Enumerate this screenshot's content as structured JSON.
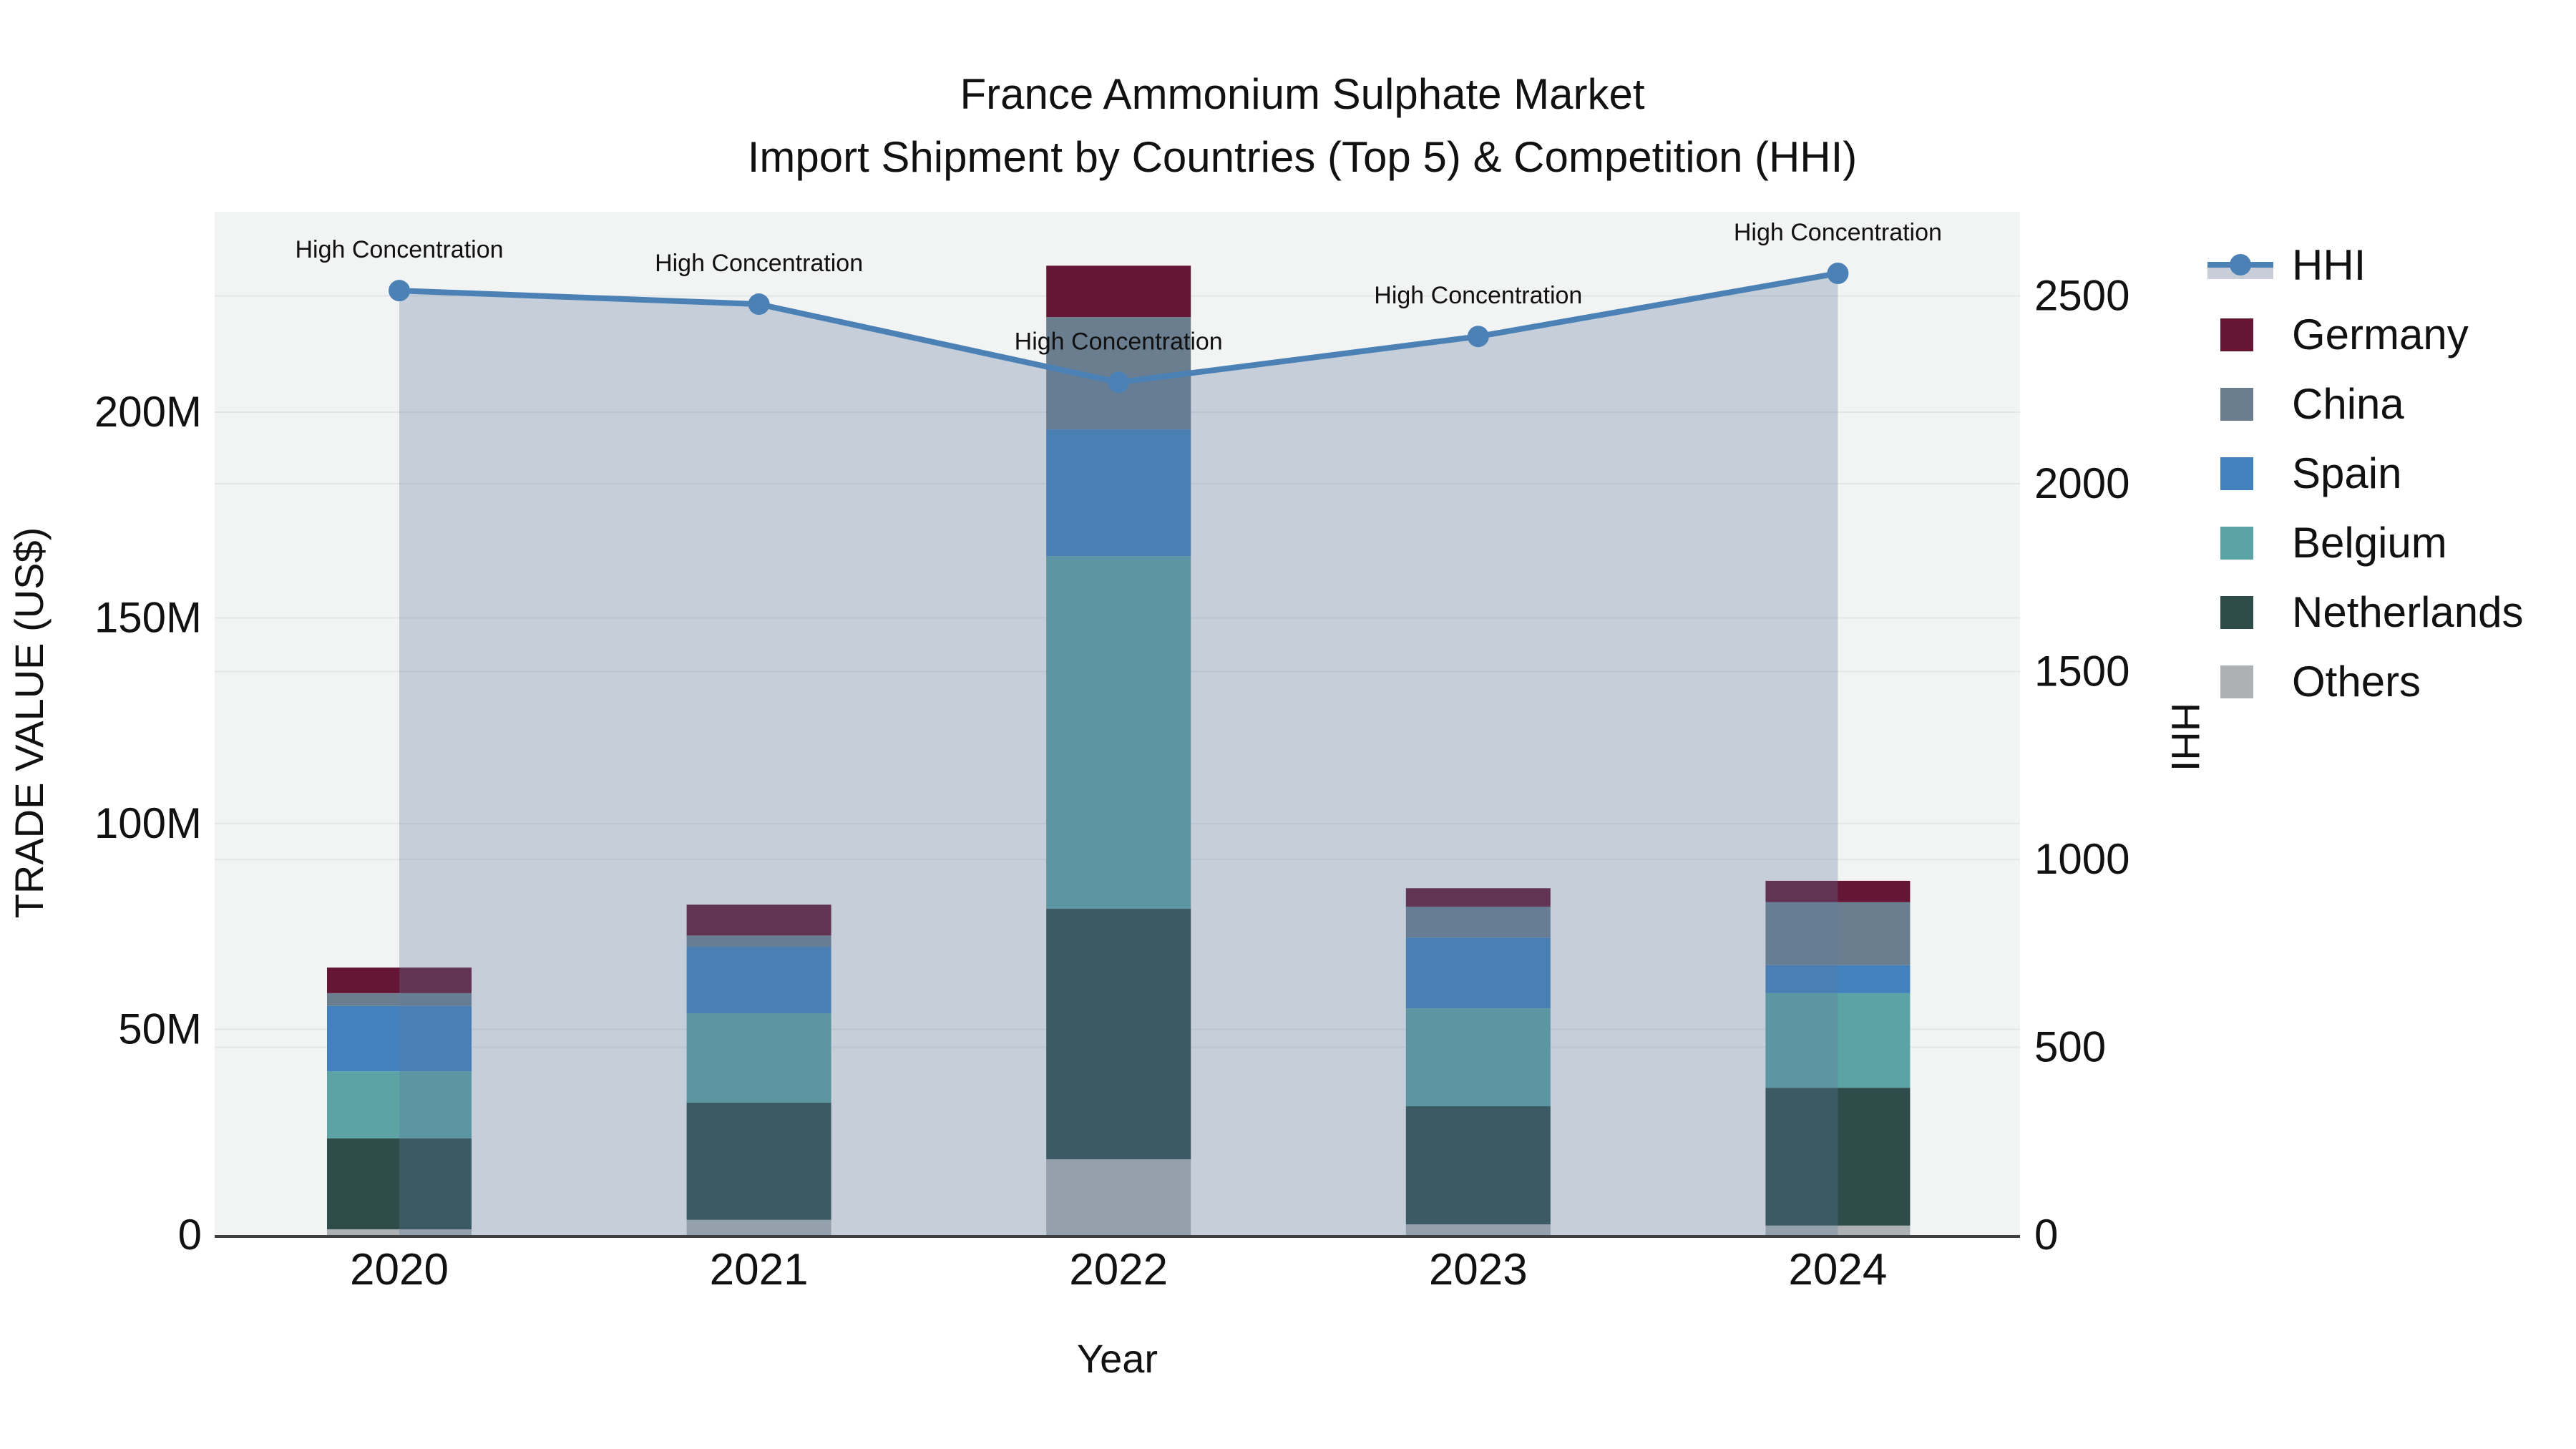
{
  "title": {
    "line1": "France Ammonium Sulphate Market",
    "line2": "Import Shipment by Countries (Top 5) & Competition (HHI)"
  },
  "axes": {
    "x_title": "Year",
    "y_left_title": "TRADE VALUE (US$)",
    "y_right_title": "HHI",
    "y_left_ticks": [
      "0",
      "50M",
      "100M",
      "150M",
      "200M"
    ],
    "y_left_tick_values_M": [
      0,
      50,
      100,
      150,
      200
    ],
    "y_right_ticks": [
      "0",
      "500",
      "1000",
      "1500",
      "2000",
      "2500"
    ],
    "y_right_tick_values": [
      0,
      500,
      1000,
      1500,
      2000,
      2500
    ]
  },
  "annotation_label": "High Concentration",
  "legend": [
    {
      "label": "HHI",
      "type": "line",
      "color": "#4c81b6"
    },
    {
      "label": "Germany",
      "type": "box",
      "color": "#651634"
    },
    {
      "label": "China",
      "type": "box",
      "color": "#6b7e90"
    },
    {
      "label": "Spain",
      "type": "box",
      "color": "#4381bd"
    },
    {
      "label": "Belgium",
      "type": "box",
      "color": "#5ba3a4"
    },
    {
      "label": "Netherlands",
      "type": "box",
      "color": "#2e4c49"
    },
    {
      "label": "Others",
      "type": "box",
      "color": "#aeb1b3"
    }
  ],
  "chart_data": {
    "type": [
      "stacked-bar",
      "line-area"
    ],
    "title": "France Ammonium Sulphate Market — Import Shipment by Countries (Top 5) & Competition (HHI)",
    "xlabel": "Year",
    "ylabel_left": "TRADE VALUE (US$)",
    "ylabel_right": "HHI",
    "categories": [
      "2020",
      "2021",
      "2022",
      "2023",
      "2024"
    ],
    "bar_unit": "USD millions",
    "series": [
      {
        "name": "Others",
        "color": "#aeb1b3",
        "values": [
          1.4,
          3.7,
          18.4,
          2.6,
          2.3
        ]
      },
      {
        "name": "Netherlands",
        "color": "#2e4c49",
        "values": [
          22.1,
          28.5,
          60.9,
          28.7,
          33.5
        ]
      },
      {
        "name": "Belgium",
        "color": "#5ba3a4",
        "values": [
          16.3,
          21.7,
          85.7,
          23.8,
          23.0
        ]
      },
      {
        "name": "Spain",
        "color": "#4381bd",
        "values": [
          15.9,
          16.1,
          30.8,
          17.2,
          6.8
        ]
      },
      {
        "name": "China",
        "color": "#6b7e90",
        "values": [
          3.1,
          2.8,
          27.3,
          7.5,
          15.3
        ]
      },
      {
        "name": "Germany",
        "color": "#651634",
        "values": [
          6.2,
          7.5,
          12.5,
          4.5,
          5.2
        ]
      }
    ],
    "bar_totals_M": [
      65.0,
      80.4,
      235.6,
      84.3,
      86.1
    ],
    "hhi_series": {
      "name": "HHI",
      "values": [
        2514,
        2478,
        2270,
        2392,
        2560
      ],
      "line_color": "#4c81b6",
      "area_fill": "rgba(93,121,158,0.30)",
      "annotations": [
        "High Concentration",
        "High Concentration",
        "High Concentration",
        "High Concentration",
        "High Concentration"
      ]
    },
    "ylim_left_M": [
      0,
      248.7
    ],
    "ylim_right_HHI": [
      0,
      2724
    ],
    "grid": true,
    "legend_position": "right"
  },
  "colors": {
    "plot_bg": "#f2f3f3",
    "grid": "#e3e5e7",
    "axis_line": "#3f3f3f",
    "text": "#111111"
  }
}
